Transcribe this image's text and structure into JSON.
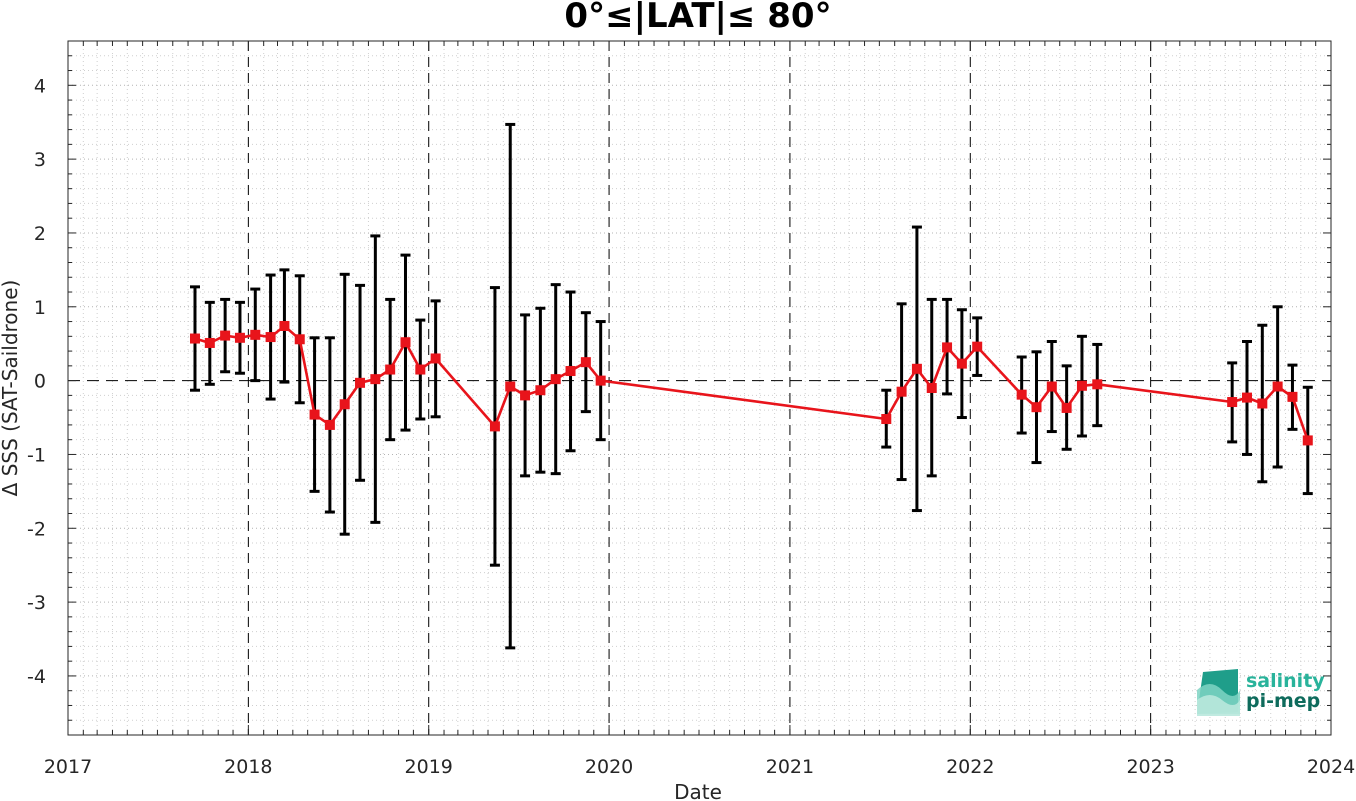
{
  "chart_data": {
    "type": "line",
    "title": "0°≤|LAT|≤ 80°",
    "xlabel": "Date",
    "ylabel": "Δ SSS (SAT-Saildrone)",
    "xlim": [
      "2017-01-01",
      "2024-01-01"
    ],
    "ylim": [
      -4.8,
      4.6
    ],
    "yticks": [
      -4,
      -3,
      -2,
      -1,
      0,
      1,
      2,
      3,
      4
    ],
    "ytick_labels": [
      "-4",
      "-3",
      "-2",
      "-1",
      "0",
      "1",
      "2",
      "3",
      "4"
    ],
    "xticks": [
      "2017-01-01",
      "2018-01-01",
      "2019-01-01",
      "2020-01-01",
      "2021-01-01",
      "2022-01-01",
      "2023-01-01",
      "2024-01-01"
    ],
    "xtick_labels": [
      "2017",
      "2018",
      "2019",
      "2020",
      "2021",
      "2022",
      "2023",
      "2024"
    ],
    "year_lines": [
      "2018-01-01",
      "2019-01-01",
      "2020-01-01",
      "2021-01-01",
      "2022-01-01",
      "2023-01-01"
    ],
    "grid": true,
    "minor_grid": true,
    "zero_line": true,
    "series": [
      {
        "color": "#e8141b",
        "errorbar_color": "#000000",
        "marker": "square",
        "points": [
          {
            "x": "2017-09-15",
            "y": 0.57,
            "lo": -0.13,
            "hi": 1.27
          },
          {
            "x": "2017-10-15",
            "y": 0.51,
            "lo": -0.05,
            "hi": 1.06
          },
          {
            "x": "2017-11-15",
            "y": 0.61,
            "lo": 0.12,
            "hi": 1.1
          },
          {
            "x": "2017-12-15",
            "y": 0.58,
            "lo": 0.1,
            "hi": 1.06
          },
          {
            "x": "2018-01-15",
            "y": 0.62,
            "lo": 0.0,
            "hi": 1.24
          },
          {
            "x": "2018-02-15",
            "y": 0.59,
            "lo": -0.25,
            "hi": 1.43
          },
          {
            "x": "2018-03-15",
            "y": 0.74,
            "lo": -0.02,
            "hi": 1.5
          },
          {
            "x": "2018-04-15",
            "y": 0.56,
            "lo": -0.3,
            "hi": 1.42
          },
          {
            "x": "2018-05-15",
            "y": -0.46,
            "lo": -1.5,
            "hi": 0.58
          },
          {
            "x": "2018-06-15",
            "y": -0.6,
            "lo": -1.78,
            "hi": 0.58
          },
          {
            "x": "2018-07-15",
            "y": -0.32,
            "lo": -2.08,
            "hi": 1.44
          },
          {
            "x": "2018-08-15",
            "y": -0.03,
            "lo": -1.35,
            "hi": 1.29
          },
          {
            "x": "2018-09-15",
            "y": 0.02,
            "lo": -1.92,
            "hi": 1.96
          },
          {
            "x": "2018-10-15",
            "y": 0.15,
            "lo": -0.8,
            "hi": 1.1
          },
          {
            "x": "2018-11-15",
            "y": 0.52,
            "lo": -0.67,
            "hi": 1.7
          },
          {
            "x": "2018-12-15",
            "y": 0.15,
            "lo": -0.52,
            "hi": 0.82
          },
          {
            "x": "2019-01-15",
            "y": 0.3,
            "lo": -0.49,
            "hi": 1.08
          },
          {
            "x": "2019-05-15",
            "y": -0.62,
            "lo": -2.5,
            "hi": 1.26
          },
          {
            "x": "2019-06-15",
            "y": -0.08,
            "lo": -3.62,
            "hi": 3.47
          },
          {
            "x": "2019-07-15",
            "y": -0.2,
            "lo": -1.29,
            "hi": 0.89
          },
          {
            "x": "2019-08-15",
            "y": -0.13,
            "lo": -1.24,
            "hi": 0.98
          },
          {
            "x": "2019-09-15",
            "y": 0.02,
            "lo": -1.26,
            "hi": 1.3
          },
          {
            "x": "2019-10-15",
            "y": 0.13,
            "lo": -0.95,
            "hi": 1.2
          },
          {
            "x": "2019-11-15",
            "y": 0.25,
            "lo": -0.42,
            "hi": 0.92
          },
          {
            "x": "2019-12-15",
            "y": 0.0,
            "lo": -0.8,
            "hi": 0.8
          },
          {
            "x": "2021-07-15",
            "y": -0.52,
            "lo": -0.9,
            "hi": -0.13
          },
          {
            "x": "2021-08-15",
            "y": -0.15,
            "lo": -1.34,
            "hi": 1.04
          },
          {
            "x": "2021-09-15",
            "y": 0.16,
            "lo": -1.76,
            "hi": 2.08
          },
          {
            "x": "2021-10-15",
            "y": -0.1,
            "lo": -1.29,
            "hi": 1.1
          },
          {
            "x": "2021-11-15",
            "y": 0.45,
            "lo": -0.18,
            "hi": 1.1
          },
          {
            "x": "2021-12-15",
            "y": 0.23,
            "lo": -0.5,
            "hi": 0.96
          },
          {
            "x": "2022-01-15",
            "y": 0.46,
            "lo": 0.07,
            "hi": 0.85
          },
          {
            "x": "2022-04-15",
            "y": -0.19,
            "lo": -0.71,
            "hi": 0.32
          },
          {
            "x": "2022-05-15",
            "y": -0.36,
            "lo": -1.11,
            "hi": 0.39
          },
          {
            "x": "2022-06-15",
            "y": -0.08,
            "lo": -0.69,
            "hi": 0.53
          },
          {
            "x": "2022-07-15",
            "y": -0.37,
            "lo": -0.93,
            "hi": 0.2
          },
          {
            "x": "2022-08-15",
            "y": -0.07,
            "lo": -0.75,
            "hi": 0.6
          },
          {
            "x": "2022-09-15",
            "y": -0.05,
            "lo": -0.61,
            "hi": 0.49
          },
          {
            "x": "2023-06-15",
            "y": -0.29,
            "lo": -0.83,
            "hi": 0.24
          },
          {
            "x": "2023-07-15",
            "y": -0.23,
            "lo": -1.0,
            "hi": 0.53
          },
          {
            "x": "2023-08-15",
            "y": -0.31,
            "lo": -1.37,
            "hi": 0.75
          },
          {
            "x": "2023-09-15",
            "y": -0.08,
            "lo": -1.17,
            "hi": 1.0
          },
          {
            "x": "2023-10-15",
            "y": -0.22,
            "lo": -0.66,
            "hi": 0.21
          },
          {
            "x": "2023-11-15",
            "y": -0.81,
            "lo": -1.53,
            "hi": -0.09
          }
        ]
      }
    ]
  },
  "logo": {
    "line1": "salinity",
    "line2": "pi-mep",
    "color1": "#29b39b",
    "color2": "#0e6b5c"
  }
}
